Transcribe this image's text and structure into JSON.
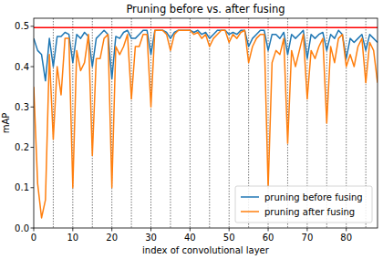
{
  "chart_data": {
    "type": "line",
    "title": "Pruning before vs. after fusing",
    "x_label": "index of convolutional layer",
    "y_label": "mAP",
    "x": [
      0,
      1,
      2,
      3,
      4,
      5,
      6,
      7,
      8,
      9,
      10,
      11,
      12,
      13,
      14,
      15,
      16,
      17,
      18,
      19,
      20,
      21,
      22,
      23,
      24,
      25,
      26,
      27,
      28,
      29,
      30,
      31,
      32,
      33,
      34,
      35,
      36,
      37,
      38,
      39,
      40,
      41,
      42,
      43,
      44,
      45,
      46,
      47,
      48,
      49,
      50,
      51,
      52,
      53,
      54,
      55,
      56,
      57,
      58,
      59,
      60,
      61,
      62,
      63,
      64,
      65,
      66,
      67,
      68,
      69,
      70,
      71,
      72,
      73,
      74,
      75,
      76,
      77,
      78,
      79,
      80,
      81,
      82,
      83,
      84,
      85,
      86,
      87,
      88
    ],
    "series": [
      {
        "name": "pruning before fusing",
        "color": "#1f77b4",
        "values": [
          0.47,
          0.44,
          0.43,
          0.365,
          0.47,
          0.4,
          0.475,
          0.475,
          0.485,
          0.48,
          0.41,
          0.48,
          0.47,
          0.485,
          0.475,
          0.4,
          0.47,
          0.48,
          0.49,
          0.48,
          0.37,
          0.475,
          0.47,
          0.485,
          0.49,
          0.47,
          0.47,
          0.48,
          0.49,
          0.49,
          0.43,
          0.49,
          0.49,
          0.49,
          0.485,
          0.47,
          0.485,
          0.49,
          0.49,
          0.49,
          0.49,
          0.485,
          0.49,
          0.48,
          0.485,
          0.47,
          0.48,
          0.49,
          0.49,
          0.49,
          0.48,
          0.485,
          0.48,
          0.49,
          0.49,
          0.45,
          0.47,
          0.48,
          0.49,
          0.49,
          0.44,
          0.48,
          0.48,
          0.47,
          0.485,
          0.43,
          0.48,
          0.47,
          0.48,
          0.49,
          0.42,
          0.48,
          0.47,
          0.48,
          0.485,
          0.44,
          0.48,
          0.47,
          0.49,
          0.48,
          0.42,
          0.47,
          0.46,
          0.47,
          0.48,
          0.44,
          0.48,
          0.47,
          0.46
        ]
      },
      {
        "name": "pruning after fusing",
        "color": "#ff7f0e",
        "values": [
          0.35,
          0.11,
          0.025,
          0.07,
          0.43,
          0.22,
          0.4,
          0.33,
          0.47,
          0.47,
          0.1,
          0.44,
          0.39,
          0.41,
          0.48,
          0.18,
          0.42,
          0.42,
          0.47,
          0.48,
          0.1,
          0.45,
          0.43,
          0.45,
          0.48,
          0.32,
          0.45,
          0.45,
          0.48,
          0.48,
          0.3,
          0.49,
          0.49,
          0.49,
          0.48,
          0.44,
          0.48,
          0.49,
          0.49,
          0.49,
          0.49,
          0.48,
          0.485,
          0.47,
          0.48,
          0.45,
          0.47,
          0.48,
          0.49,
          0.49,
          0.46,
          0.48,
          0.47,
          0.485,
          0.49,
          0.41,
          0.45,
          0.47,
          0.48,
          0.48,
          0.1,
          0.41,
          0.44,
          0.43,
          0.47,
          0.21,
          0.44,
          0.4,
          0.44,
          0.48,
          0.32,
          0.44,
          0.42,
          0.45,
          0.47,
          0.26,
          0.45,
          0.41,
          0.47,
          0.48,
          0.4,
          0.43,
          0.4,
          0.45,
          0.47,
          0.36,
          0.46,
          0.44,
          0.36
        ]
      }
    ],
    "hline": {
      "value": 0.497,
      "color": "#ff0000"
    },
    "vlines": [
      5,
      10,
      15,
      20,
      25,
      30,
      35,
      40,
      45,
      50,
      55,
      60,
      65,
      70,
      75,
      80,
      85
    ],
    "xlim": [
      0,
      88
    ],
    "xticks": [
      0,
      10,
      20,
      30,
      40,
      50,
      60,
      70,
      80
    ],
    "ylim": [
      0,
      0.52
    ],
    "yticks": [
      {
        "value": 0,
        "label": "0.0"
      },
      0.1,
      0.2,
      0.3,
      0.4,
      0.5
    ],
    "legend": "lower right",
    "grid": false
  }
}
